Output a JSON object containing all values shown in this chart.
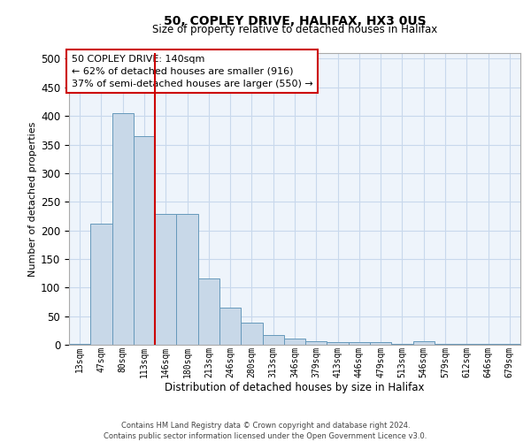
{
  "title1": "50, COPLEY DRIVE, HALIFAX, HX3 0US",
  "title2": "Size of property relative to detached houses in Halifax",
  "xlabel": "Distribution of detached houses by size in Halifax",
  "ylabel": "Number of detached properties",
  "categories": [
    "13sqm",
    "47sqm",
    "80sqm",
    "113sqm",
    "146sqm",
    "180sqm",
    "213sqm",
    "246sqm",
    "280sqm",
    "313sqm",
    "346sqm",
    "379sqm",
    "413sqm",
    "446sqm",
    "479sqm",
    "513sqm",
    "546sqm",
    "579sqm",
    "612sqm",
    "646sqm",
    "679sqm"
  ],
  "values": [
    2,
    211,
    405,
    365,
    229,
    229,
    116,
    65,
    38,
    17,
    11,
    6,
    5,
    5,
    5,
    1,
    6,
    1,
    1,
    1,
    1
  ],
  "bar_color": "#c8d8e8",
  "bar_edge_color": "#6699bb",
  "grid_color": "#c8d8ec",
  "bg_color": "#eef4fb",
  "vline_color": "#cc0000",
  "vline_x_idx": 3.5,
  "annotation_text": "50 COPLEY DRIVE: 140sqm\n← 62% of detached houses are smaller (916)\n37% of semi-detached houses are larger (550) →",
  "annotation_box_color": "#ffffff",
  "annotation_box_edge": "#cc0000",
  "footer1": "Contains HM Land Registry data © Crown copyright and database right 2024.",
  "footer2": "Contains public sector information licensed under the Open Government Licence v3.0.",
  "ylim": [
    0,
    510
  ],
  "yticks": [
    0,
    50,
    100,
    150,
    200,
    250,
    300,
    350,
    400,
    450,
    500
  ]
}
